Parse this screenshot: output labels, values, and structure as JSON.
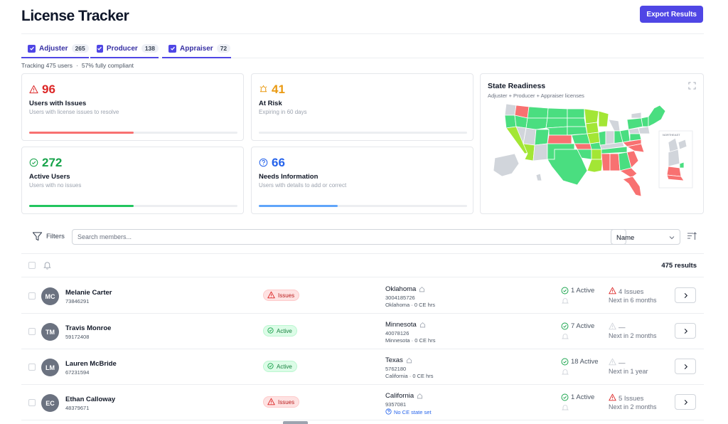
{
  "app": {
    "title": "License Tracker",
    "export_label": "Export Results"
  },
  "tabs": [
    {
      "label": "Adjuster",
      "count": "265"
    },
    {
      "label": "Producer",
      "count": "138"
    },
    {
      "label": "Appraiser",
      "count": "72"
    }
  ],
  "tracking": {
    "users": "Tracking 475 users",
    "compliance": "57% fully compliant"
  },
  "stats": {
    "issues": {
      "value": "96",
      "title": "Users with Issues",
      "subtitle": "Users with license issues to resolve",
      "color": "#dc2626",
      "bar_fraction": 0.5
    },
    "at_risk": {
      "value": "41",
      "title": "At Risk",
      "subtitle": "Expiring in 60 days",
      "color": "#ea9a12",
      "bar_fraction": 0
    },
    "active": {
      "value": "272",
      "title": "Active Users",
      "subtitle": "Users with no issues",
      "color": "#16a34a",
      "bar_fraction": 0.5
    },
    "needs": {
      "value": "66",
      "title": "Needs Information",
      "subtitle": "Users with details to add or correct",
      "color": "#2563eb",
      "bar_fraction": 0.38
    }
  },
  "map": {
    "title": "State Readiness",
    "subtitle": "Adjuster + Producer + Appraiser licenses",
    "inset_label": "NORTHEAST",
    "colors": {
      "ready": "#4ade80",
      "partial": "#a3e635",
      "issues": "#f87171",
      "none": "#d1d5db"
    }
  },
  "filters": {
    "label": "Filters",
    "search_placeholder": "Search members...",
    "sort_value": "Name"
  },
  "list": {
    "results_label": "475 results",
    "rows": [
      {
        "initials": "MC",
        "name": "Melanie Carter",
        "id": "73846291",
        "status": "Issues",
        "status_type": "issues",
        "state": "Oklahoma",
        "license": "3004185726",
        "ce": "Oklahoma · 0 CE hrs",
        "ce_link": false,
        "active": "1 Active",
        "issues": "4 Issues",
        "issue_type": "warn",
        "next": "Next in 6 months"
      },
      {
        "initials": "TM",
        "name": "Travis Monroe",
        "id": "59172408",
        "status": "Active",
        "status_type": "active",
        "state": "Minnesota",
        "license": "40078126",
        "ce": "Minnesota · 0 CE hrs",
        "ce_link": false,
        "active": "7 Active",
        "issues": "—",
        "issue_type": "none",
        "next": "Next in 2 months"
      },
      {
        "initials": "LM",
        "name": "Lauren McBride",
        "id": "67231594",
        "status": "Active",
        "status_type": "active",
        "state": "Texas",
        "license": "5762180",
        "ce": "California · 0 CE hrs",
        "ce_link": false,
        "active": "18 Active",
        "issues": "—",
        "issue_type": "none",
        "next": "Next in 1 year"
      },
      {
        "initials": "EC",
        "name": "Ethan Calloway",
        "id": "48379671",
        "status": "Issues",
        "status_type": "issues",
        "state": "California",
        "license": "9357081",
        "ce": "No CE state set",
        "ce_link": true,
        "active": "1 Active",
        "issues": "5 Issues",
        "issue_type": "warn",
        "next": "Next in 2 months"
      }
    ]
  }
}
